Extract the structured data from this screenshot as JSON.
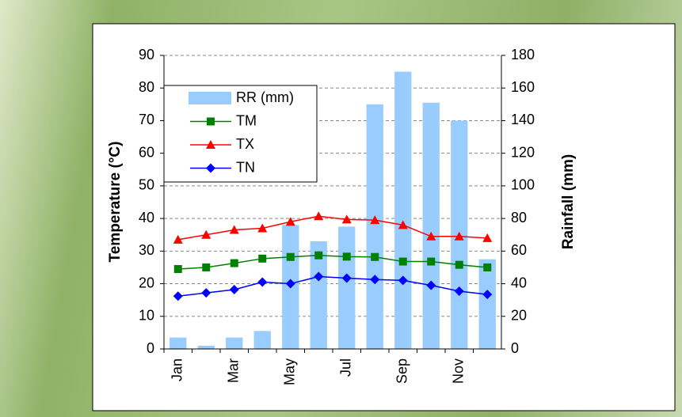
{
  "chart_data": {
    "type": "bar_line",
    "y_label": "Temperature (°C)",
    "y2_label": "Rainfall (mm)",
    "categories": [
      "Jan",
      null,
      "Mar",
      null,
      "May",
      null,
      "Jul",
      null,
      "Sep",
      null,
      "Nov",
      null
    ],
    "ylim": [
      0,
      90
    ],
    "yticks": [
      0,
      10,
      20,
      30,
      40,
      50,
      60,
      70,
      80,
      90
    ],
    "y2lim": [
      0,
      180
    ],
    "y2ticks": [
      0,
      20,
      40,
      60,
      80,
      100,
      120,
      140,
      160,
      180
    ],
    "grid": true,
    "legend": "upper left",
    "series": [
      {
        "name": "RR (mm)",
        "type": "bar",
        "axis": "y2",
        "color": "#99ccff",
        "values": [
          7,
          2,
          7,
          11,
          76,
          66,
          75,
          150,
          170,
          151,
          140,
          55
        ]
      },
      {
        "name": "TM",
        "type": "line",
        "marker": "square",
        "color": "#008000",
        "values": [
          24.5,
          25,
          26.3,
          27.7,
          28.2,
          28.7,
          28.3,
          28.2,
          26.8,
          26.8,
          25.8,
          25
        ]
      },
      {
        "name": "TX",
        "type": "line",
        "marker": "triangle",
        "color": "#ff0000",
        "values": [
          33.5,
          35,
          36.5,
          37,
          39,
          40.7,
          39.7,
          39.5,
          38,
          34.5,
          34.5,
          34
        ]
      },
      {
        "name": "TN",
        "type": "line",
        "marker": "diamond",
        "color": "#0000ff",
        "values": [
          16.2,
          17.2,
          18.2,
          20.5,
          20,
          22.2,
          21.7,
          21.3,
          21,
          19.5,
          17.7,
          16.7
        ]
      }
    ]
  }
}
